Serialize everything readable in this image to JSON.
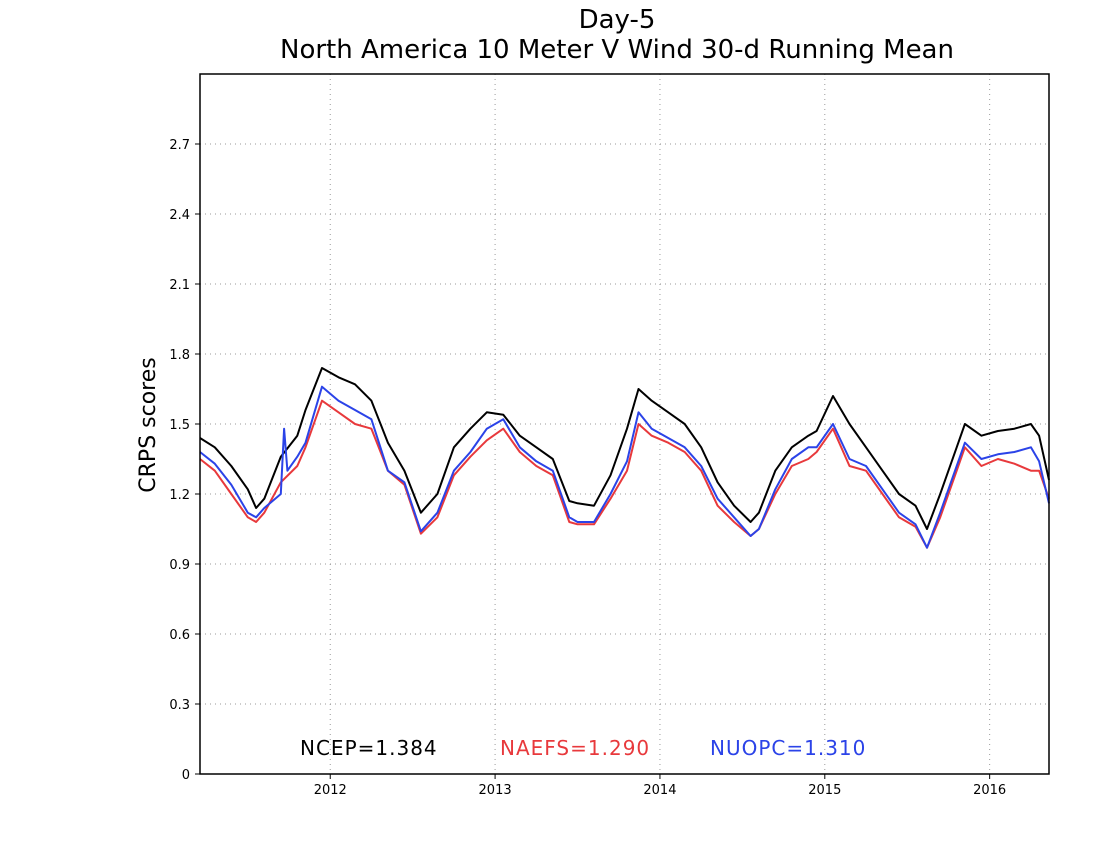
{
  "chart_data": {
    "type": "line",
    "title": "Day-5",
    "subtitle": "North America 10 Meter V Wind 30-d Running Mean",
    "ylabel": "CRPS scores",
    "xlabel": "",
    "ylim": [
      0,
      3.0
    ],
    "xlim": [
      2011.21,
      2016.36
    ],
    "yticks": [
      0,
      0.3,
      0.6,
      0.9,
      1.2,
      1.5,
      1.8,
      2.1,
      2.4,
      2.7
    ],
    "ytick_labels": [
      "0",
      "0.3",
      "0.6",
      "0.9",
      "1.2",
      "1.5",
      "1.8",
      "2.1",
      "2.4",
      "2.7"
    ],
    "xticks": [
      2012,
      2013,
      2014,
      2015,
      2016
    ],
    "xtick_labels": [
      "2012",
      "2013",
      "2014",
      "2015",
      "2016"
    ],
    "grid": true,
    "legend_position": "bottom",
    "series": [
      {
        "name": "NCEP",
        "label": "NCEP=1.384",
        "color": "#000000",
        "x": [
          2011.21,
          2011.3,
          2011.4,
          2011.5,
          2011.55,
          2011.6,
          2011.7,
          2011.8,
          2011.85,
          2011.95,
          2012.05,
          2012.15,
          2012.25,
          2012.35,
          2012.45,
          2012.55,
          2012.65,
          2012.75,
          2012.85,
          2012.95,
          2013.05,
          2013.15,
          2013.25,
          2013.35,
          2013.45,
          2013.5,
          2013.6,
          2013.7,
          2013.8,
          2013.87,
          2013.95,
          2014.05,
          2014.15,
          2014.25,
          2014.35,
          2014.45,
          2014.55,
          2014.6,
          2014.7,
          2014.8,
          2014.9,
          2014.95,
          2015.05,
          2015.15,
          2015.25,
          2015.35,
          2015.45,
          2015.55,
          2015.62,
          2015.7,
          2015.8,
          2015.85,
          2015.95,
          2016.05,
          2016.15,
          2016.25,
          2016.3,
          2016.36
        ],
        "y": [
          1.44,
          1.4,
          1.32,
          1.22,
          1.14,
          1.18,
          1.36,
          1.45,
          1.56,
          1.74,
          1.7,
          1.67,
          1.6,
          1.42,
          1.3,
          1.12,
          1.2,
          1.4,
          1.48,
          1.55,
          1.54,
          1.45,
          1.4,
          1.35,
          1.17,
          1.16,
          1.15,
          1.28,
          1.48,
          1.65,
          1.6,
          1.55,
          1.5,
          1.4,
          1.25,
          1.15,
          1.08,
          1.12,
          1.3,
          1.4,
          1.45,
          1.47,
          1.62,
          1.5,
          1.4,
          1.3,
          1.2,
          1.15,
          1.05,
          1.2,
          1.4,
          1.5,
          1.45,
          1.47,
          1.48,
          1.5,
          1.45,
          1.26
        ]
      },
      {
        "name": "NAEFS",
        "label": "NAEFS=1.290",
        "color": "#e8393c",
        "x": [
          2011.21,
          2011.3,
          2011.4,
          2011.5,
          2011.55,
          2011.6,
          2011.7,
          2011.8,
          2011.85,
          2011.95,
          2012.05,
          2012.15,
          2012.25,
          2012.35,
          2012.45,
          2012.55,
          2012.65,
          2012.75,
          2012.85,
          2012.95,
          2013.05,
          2013.15,
          2013.25,
          2013.35,
          2013.45,
          2013.5,
          2013.6,
          2013.7,
          2013.8,
          2013.87,
          2013.95,
          2014.05,
          2014.15,
          2014.25,
          2014.35,
          2014.45,
          2014.55,
          2014.6,
          2014.7,
          2014.8,
          2014.9,
          2014.95,
          2015.05,
          2015.15,
          2015.25,
          2015.35,
          2015.45,
          2015.55,
          2015.62,
          2015.7,
          2015.8,
          2015.85,
          2015.95,
          2016.05,
          2016.15,
          2016.25,
          2016.3,
          2016.36
        ],
        "y": [
          1.35,
          1.3,
          1.2,
          1.1,
          1.08,
          1.12,
          1.25,
          1.32,
          1.4,
          1.6,
          1.55,
          1.5,
          1.48,
          1.3,
          1.24,
          1.03,
          1.1,
          1.28,
          1.36,
          1.43,
          1.48,
          1.38,
          1.32,
          1.28,
          1.08,
          1.07,
          1.07,
          1.18,
          1.3,
          1.5,
          1.45,
          1.42,
          1.38,
          1.3,
          1.15,
          1.08,
          1.02,
          1.05,
          1.2,
          1.32,
          1.35,
          1.38,
          1.48,
          1.32,
          1.3,
          1.2,
          1.1,
          1.06,
          0.97,
          1.1,
          1.3,
          1.4,
          1.32,
          1.35,
          1.33,
          1.3,
          1.3,
          1.18
        ]
      },
      {
        "name": "NUOPC",
        "label": "NUOPC=1.310",
        "color": "#2b43e8",
        "x": [
          2011.21,
          2011.3,
          2011.4,
          2011.5,
          2011.55,
          2011.6,
          2011.7,
          2011.72,
          2011.74,
          2011.8,
          2011.85,
          2011.95,
          2012.05,
          2012.15,
          2012.25,
          2012.35,
          2012.45,
          2012.55,
          2012.65,
          2012.75,
          2012.85,
          2012.95,
          2013.05,
          2013.15,
          2013.25,
          2013.35,
          2013.45,
          2013.5,
          2013.6,
          2013.7,
          2013.8,
          2013.87,
          2013.95,
          2014.05,
          2014.15,
          2014.25,
          2014.35,
          2014.45,
          2014.55,
          2014.6,
          2014.7,
          2014.8,
          2014.9,
          2014.95,
          2015.05,
          2015.15,
          2015.25,
          2015.35,
          2015.45,
          2015.55,
          2015.62,
          2015.7,
          2015.8,
          2015.85,
          2015.95,
          2016.05,
          2016.15,
          2016.25,
          2016.3,
          2016.36
        ],
        "y": [
          1.38,
          1.33,
          1.24,
          1.12,
          1.1,
          1.14,
          1.2,
          1.48,
          1.3,
          1.36,
          1.42,
          1.66,
          1.6,
          1.56,
          1.52,
          1.3,
          1.25,
          1.04,
          1.12,
          1.3,
          1.38,
          1.48,
          1.52,
          1.4,
          1.34,
          1.3,
          1.1,
          1.08,
          1.08,
          1.2,
          1.34,
          1.55,
          1.48,
          1.44,
          1.4,
          1.32,
          1.18,
          1.1,
          1.02,
          1.05,
          1.22,
          1.35,
          1.4,
          1.4,
          1.5,
          1.35,
          1.32,
          1.22,
          1.12,
          1.07,
          0.97,
          1.12,
          1.32,
          1.42,
          1.35,
          1.37,
          1.38,
          1.4,
          1.34,
          1.16
        ]
      }
    ]
  }
}
